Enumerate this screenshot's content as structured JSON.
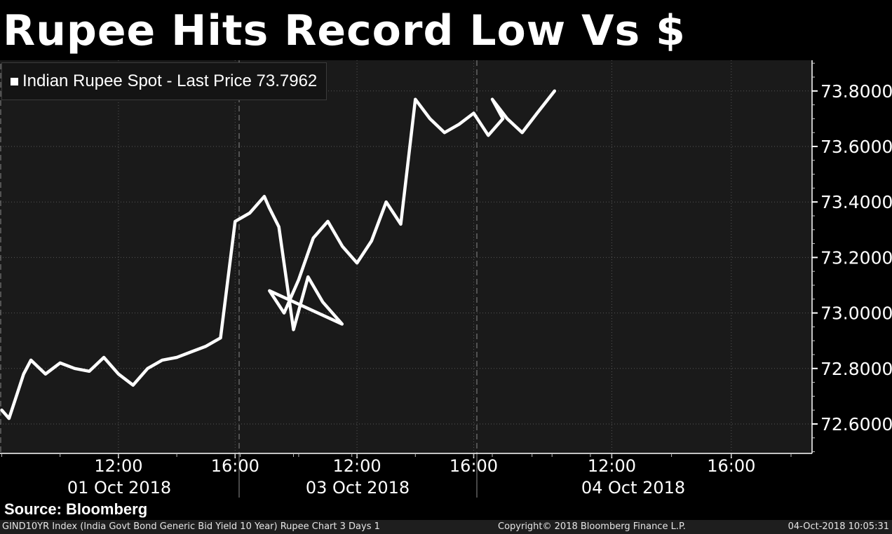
{
  "title": "Rupee Hits Record Low Vs $",
  "legend": {
    "label": "Indian Rupee Spot - Last Price 73.7962"
  },
  "source": "Source: Bloomberg",
  "footer": {
    "left": "GIND10YR Index (India Govt Bond Generic Bid Yield 10 Year) Rupee Chart 3 Days 1",
    "middle": "Copyright© 2018 Bloomberg Finance L.P.",
    "right": "04-Oct-2018 10:05:31"
  },
  "colors": {
    "background": "#000000",
    "plot_background": "#1a1a1a",
    "line": "#ffffff",
    "grid": "#555555"
  },
  "chart_data": {
    "type": "line",
    "title": "Rupee Hits Record Low Vs $",
    "series": [
      {
        "name": "Indian Rupee Spot",
        "last_price": 73.7962,
        "x": [
          "01 Oct 08:00",
          "01 Oct 08:15",
          "01 Oct 08:30",
          "01 Oct 08:45",
          "01 Oct 09:00",
          "01 Oct 09:30",
          "01 Oct 10:00",
          "01 Oct 10:30",
          "01 Oct 11:00",
          "01 Oct 11:30",
          "01 Oct 12:00",
          "01 Oct 12:30",
          "01 Oct 13:00",
          "01 Oct 13:30",
          "01 Oct 14:00",
          "01 Oct 14:30",
          "01 Oct 15:00",
          "01 Oct 15:30",
          "01 Oct 16:00",
          "01 Oct 16:30",
          "01 Oct 17:00",
          "01 Oct 17:10",
          "01 Oct 17:30",
          "01 Oct 18:00",
          "01 Oct 18:30",
          "01 Oct 19:00",
          "01 Oct 19:40",
          "03 Oct 09:00",
          "03 Oct 09:30",
          "03 Oct 10:00",
          "03 Oct 10:30",
          "03 Oct 11:00",
          "03 Oct 11:30",
          "03 Oct 12:00",
          "03 Oct 12:30",
          "03 Oct 13:00",
          "03 Oct 13:30",
          "03 Oct 14:00",
          "03 Oct 14:30",
          "03 Oct 15:00",
          "03 Oct 15:30",
          "03 Oct 16:00",
          "03 Oct 16:30",
          "03 Oct 17:00",
          "04 Oct 08:00",
          "04 Oct 08:30",
          "04 Oct 09:00",
          "04 Oct 09:30",
          "04 Oct 10:05"
        ],
        "values": [
          72.65,
          72.62,
          72.7,
          72.78,
          72.83,
          72.78,
          72.82,
          72.8,
          72.79,
          72.84,
          72.78,
          72.74,
          72.8,
          72.83,
          72.84,
          72.86,
          72.88,
          72.91,
          73.33,
          73.36,
          73.42,
          73.38,
          73.31,
          72.94,
          73.13,
          73.04,
          72.96,
          73.08,
          73.0,
          73.12,
          73.27,
          73.33,
          73.24,
          73.18,
          73.26,
          73.4,
          73.32,
          73.77,
          73.7,
          73.65,
          73.68,
          73.72,
          73.64,
          73.7,
          73.77,
          73.7,
          73.65,
          73.72,
          73.8
        ]
      }
    ],
    "x_ticks": [
      "12:00",
      "16:00",
      "12:00",
      "16:00",
      "12:00",
      "16:00"
    ],
    "day_labels": [
      "01 Oct 2018",
      "03 Oct 2018",
      "04 Oct 2018"
    ],
    "y_ticks": [
      "72.6000",
      "72.8000",
      "73.0000",
      "73.2000",
      "73.4000",
      "73.6000",
      "73.8000"
    ],
    "ylim": [
      72.5,
      73.92
    ],
    "y_axis_side": "right",
    "grid": true,
    "legend_position": "top-left",
    "xlabel": "",
    "ylabel": ""
  }
}
